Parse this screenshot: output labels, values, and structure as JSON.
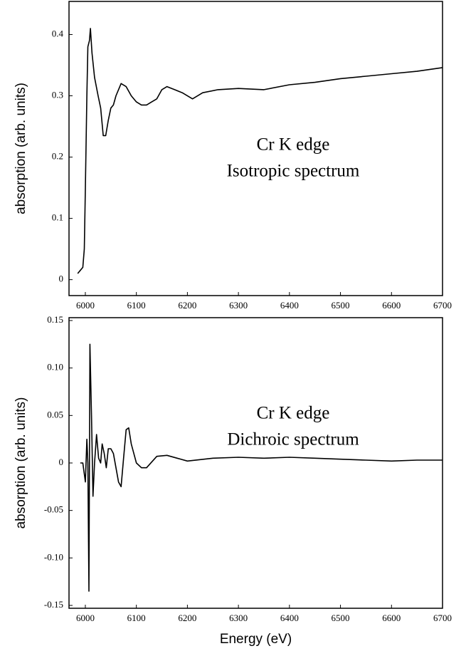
{
  "chart_data": [
    {
      "type": "line",
      "ylabel": "absorption (arb. units)",
      "annotations": [
        "Cr K edge",
        "Isotropic spectrum"
      ],
      "x": [
        5985,
        5990,
        5995,
        5998,
        6000,
        6003,
        6005,
        6008,
        6010,
        6013,
        6018,
        6025,
        6030,
        6035,
        6040,
        6045,
        6050,
        6055,
        6060,
        6065,
        6070,
        6080,
        6090,
        6100,
        6110,
        6120,
        6130,
        6140,
        6150,
        6160,
        6175,
        6190,
        6210,
        6230,
        6260,
        6300,
        6350,
        6400,
        6450,
        6500,
        6550,
        6600,
        6650,
        6700
      ],
      "values": [
        0.01,
        0.015,
        0.02,
        0.05,
        0.15,
        0.3,
        0.38,
        0.39,
        0.41,
        0.37,
        0.33,
        0.3,
        0.28,
        0.235,
        0.235,
        0.26,
        0.28,
        0.285,
        0.3,
        0.31,
        0.32,
        0.315,
        0.3,
        0.29,
        0.285,
        0.285,
        0.29,
        0.295,
        0.31,
        0.315,
        0.31,
        0.305,
        0.295,
        0.305,
        0.31,
        0.312,
        0.31,
        0.318,
        0.322,
        0.328,
        0.332,
        0.336,
        0.34,
        0.346
      ],
      "color": "#000000",
      "xlim": [
        5968,
        6700
      ],
      "xticks": [
        6000,
        6100,
        6200,
        6300,
        6400,
        6500,
        6600,
        6700
      ],
      "ylim": [
        -0.026,
        0.454
      ],
      "yticks": [
        0,
        0.1,
        0.2,
        0.3,
        0.4
      ]
    },
    {
      "type": "line",
      "ylabel": "absorption (arb. units)",
      "xlabel": "Energy (eV)",
      "annotations": [
        "Cr K edge",
        "Dichroic spectrum"
      ],
      "x": [
        5990,
        5995,
        6000,
        6003,
        6005,
        6007,
        6009,
        6012,
        6015,
        6018,
        6022,
        6026,
        6030,
        6033,
        6037,
        6041,
        6045,
        6050,
        6055,
        6060,
        6065,
        6070,
        6075,
        6080,
        6085,
        6090,
        6100,
        6110,
        6120,
        6140,
        6160,
        6180,
        6200,
        6250,
        6300,
        6350,
        6400,
        6450,
        6500,
        6550,
        6600,
        6650,
        6700
      ],
      "values": [
        0,
        0,
        -0.02,
        0.025,
        0,
        -0.135,
        0.125,
        0.05,
        -0.035,
        0,
        0.03,
        0.005,
        0,
        0.02,
        0.01,
        -0.005,
        0.015,
        0.015,
        0.01,
        -0.005,
        -0.02,
        -0.025,
        0.005,
        0.035,
        0.037,
        0.02,
        0,
        -0.005,
        -0.005,
        0.007,
        0.008,
        0.005,
        0.002,
        0.005,
        0.006,
        0.005,
        0.006,
        0.005,
        0.004,
        0.003,
        0.002,
        0.003,
        0.003
      ],
      "color": "#000000",
      "xlim": [
        5968,
        6700
      ],
      "xticks": [
        6000,
        6100,
        6200,
        6300,
        6400,
        6500,
        6600,
        6700
      ],
      "ylim": [
        -0.153,
        0.153
      ],
      "yticks": [
        -0.15,
        {
          "value": -0.1,
          "label": "-0.10"
        },
        -0.05,
        0,
        0.05,
        {
          "value": 0.1,
          "label": "0.10"
        },
        0.15
      ]
    }
  ]
}
